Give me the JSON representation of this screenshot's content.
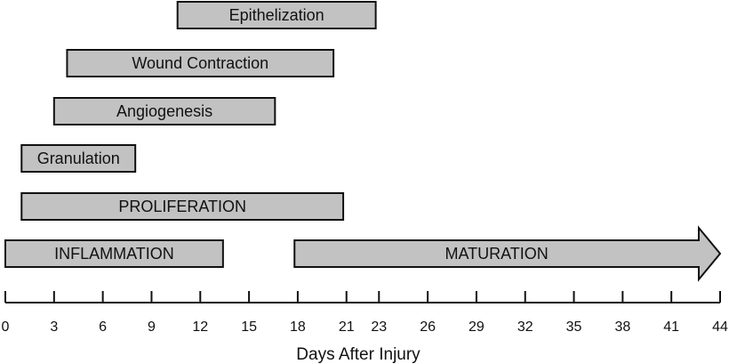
{
  "chart_data": {
    "type": "gantt",
    "xlabel": "Days After Injury",
    "xlim": [
      0,
      44
    ],
    "ticks": [
      0,
      3,
      6,
      9,
      12,
      15,
      18,
      21,
      23,
      26,
      29,
      32,
      35,
      38,
      41,
      44
    ],
    "tick_labels": [
      "0",
      "3",
      "6",
      "9",
      "12",
      "15",
      "18",
      "21",
      "23",
      "26",
      "29",
      "32",
      "35",
      "38",
      "41",
      "44"
    ],
    "bars": [
      {
        "label": "Epithelization",
        "start": 10.6,
        "end": 22.8
      },
      {
        "label": "Wound Contraction",
        "start": 3.8,
        "end": 20.2
      },
      {
        "label": "Angiogenesis",
        "start": 3.0,
        "end": 16.6
      },
      {
        "label": "Granulation",
        "start": 1.0,
        "end": 8.0
      },
      {
        "label": "PROLIFERATION",
        "start": 1.0,
        "end": 20.8
      },
      {
        "label": "INFLAMMATION",
        "start": 0.0,
        "end": 13.4
      },
      {
        "label": "MATURATION",
        "start": 17.8,
        "end": 44.0,
        "arrow": true
      }
    ],
    "colors": {
      "bar_fill": "#c2c2c2",
      "stroke": "#111111",
      "text": "#111111"
    }
  }
}
